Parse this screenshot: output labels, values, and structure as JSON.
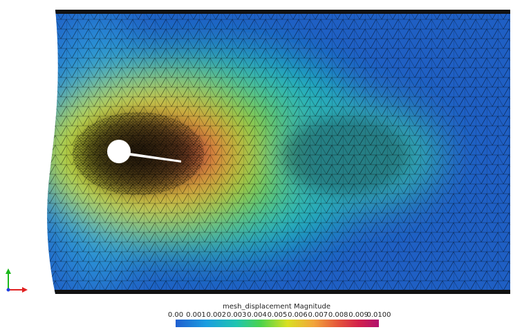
{
  "colorbar": {
    "title": "mesh_displacement Magnitude",
    "ticks": [
      "0.00",
      "0.001",
      "0.002",
      "0.003",
      "0.004",
      "0.005",
      "0.006",
      "0.007",
      "0.008",
      "0.009",
      "0.0100"
    ]
  }
}
